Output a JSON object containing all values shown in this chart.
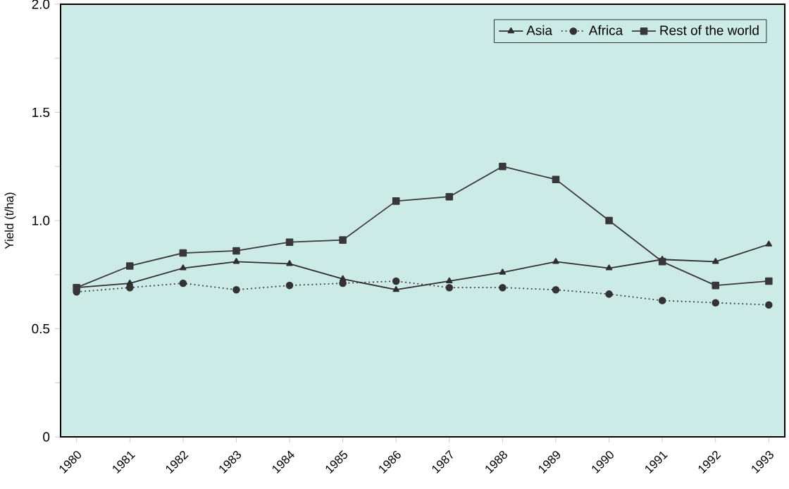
{
  "chart_data": {
    "type": "line",
    "ylabel": "Yield (t/ha)",
    "categories": [
      "1980",
      "1981",
      "1982",
      "1983",
      "1984",
      "1985",
      "1986",
      "1987",
      "1988",
      "1989",
      "1990",
      "1991",
      "1992",
      "1993"
    ],
    "series": [
      {
        "name": "Asia",
        "color": "#2e2e2e",
        "marker": "triangle",
        "line_style": "solid",
        "values": [
          0.69,
          0.71,
          0.78,
          0.81,
          0.8,
          0.73,
          0.68,
          0.72,
          0.76,
          0.81,
          0.78,
          0.82,
          0.81,
          0.89
        ]
      },
      {
        "name": "Africa",
        "color": "#333333",
        "marker": "circle",
        "line_style": "dotted",
        "values": [
          0.67,
          0.69,
          0.71,
          0.68,
          0.7,
          0.71,
          0.72,
          0.69,
          0.69,
          0.68,
          0.66,
          0.63,
          0.62,
          0.61
        ]
      },
      {
        "name": "Rest of the world",
        "color": "#383838",
        "marker": "square",
        "line_style": "solid",
        "values": [
          0.69,
          0.79,
          0.85,
          0.86,
          0.9,
          0.91,
          1.09,
          1.11,
          1.25,
          1.19,
          1.0,
          0.81,
          0.7,
          0.72
        ]
      }
    ],
    "ylim": [
      0,
      2.0
    ],
    "yticks": [
      0,
      {
        "value": 0.25,
        "label": null
      },
      0.5,
      {
        "value": 0.75,
        "label": null
      },
      {
        "value": 1.0,
        "label": "1.0"
      },
      {
        "value": 1.25,
        "label": null
      },
      1.5,
      {
        "value": 1.75,
        "label": null
      },
      {
        "value": 2.0,
        "label": "2.0"
      }
    ],
    "grid": false,
    "legend": "top right"
  }
}
